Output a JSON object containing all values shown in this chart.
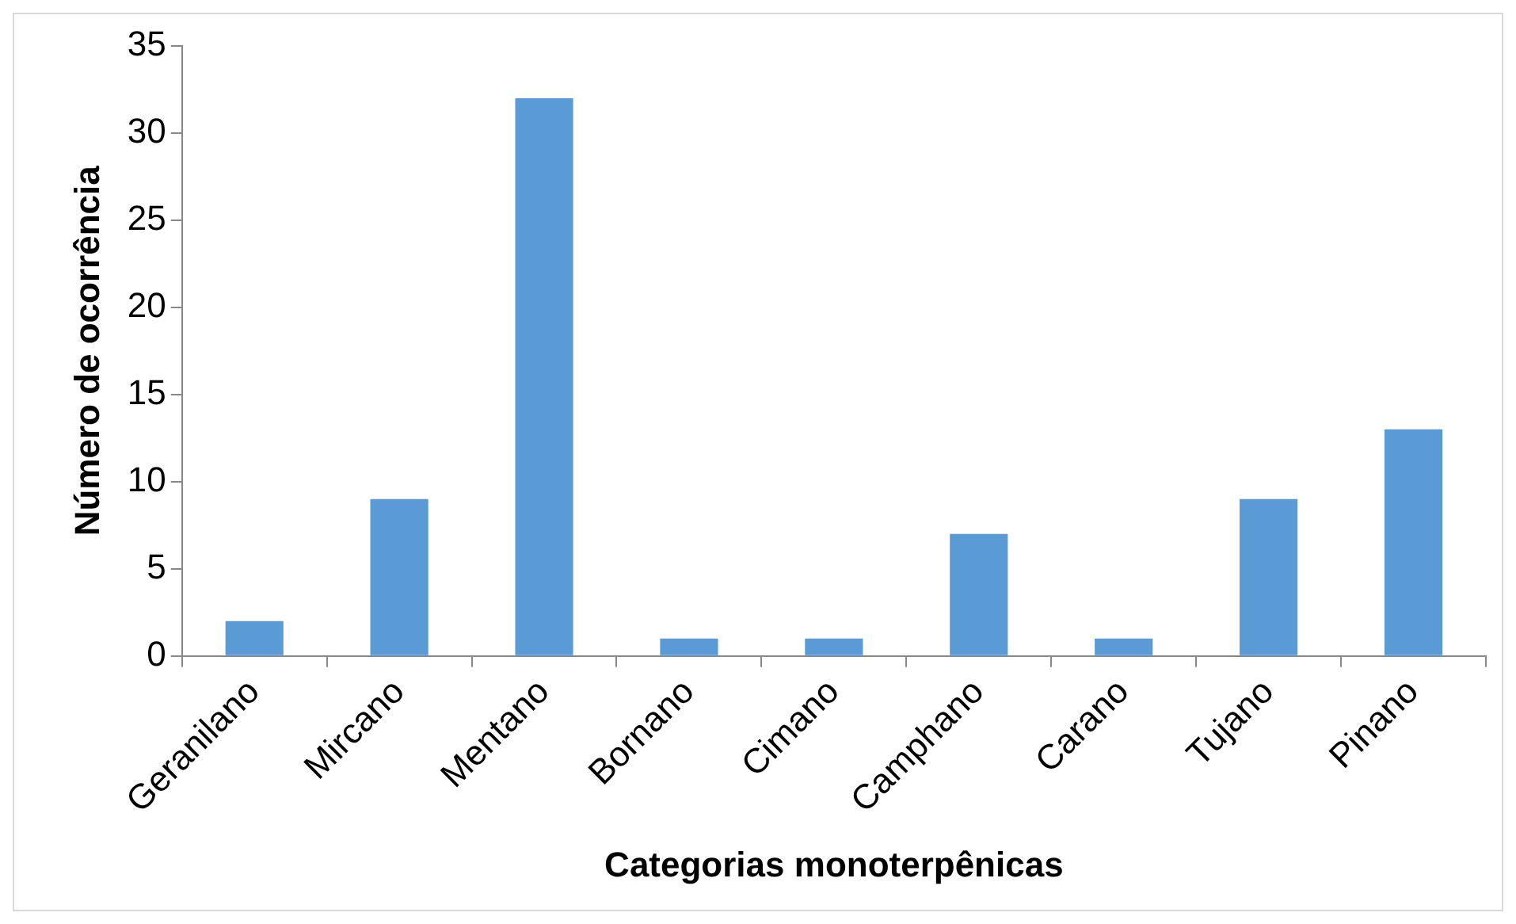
{
  "chart_data": {
    "type": "bar",
    "xlabel": "Categorias monoterpênicas",
    "ylabel": "Número de ocorrência",
    "categories": [
      "Geranilano",
      "Mircano",
      "Mentano",
      "Bornano",
      "Cimano",
      "Camphano",
      "Carano",
      "Tujano",
      "Pinano"
    ],
    "values": [
      2,
      9,
      32,
      1,
      1,
      7,
      1,
      9,
      13
    ],
    "color": "#5b9bd5",
    "ylim": [
      0,
      35
    ],
    "yticks": [
      0,
      5,
      10,
      15,
      20,
      25,
      30,
      35
    ],
    "grid": false,
    "legend": false
  }
}
